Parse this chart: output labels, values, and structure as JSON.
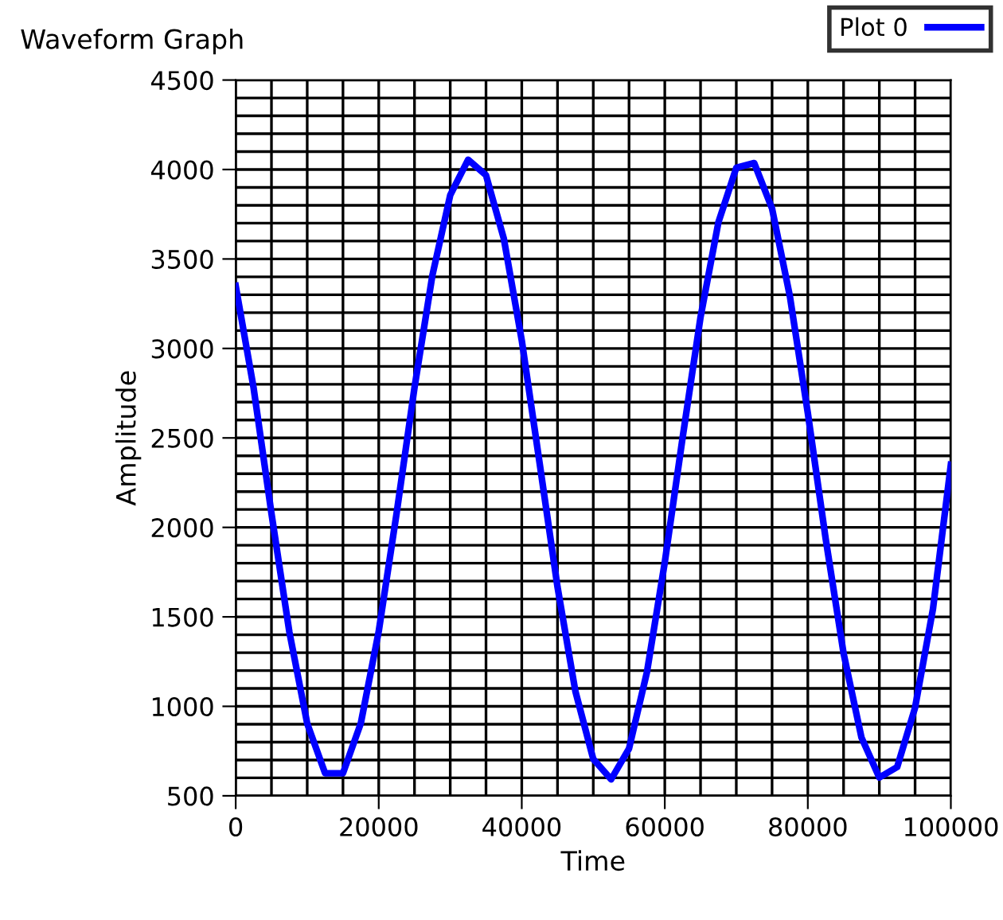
{
  "chart_data": {
    "type": "line",
    "title": "Waveform Graph",
    "xlabel": "Time",
    "ylabel": "Amplitude",
    "x": [
      0,
      2500,
      5000,
      7500,
      10000,
      12500,
      15000,
      17500,
      20000,
      22500,
      25000,
      27500,
      30000,
      32500,
      35000,
      37500,
      40000,
      42500,
      45000,
      47500,
      50000,
      52500,
      55000,
      57500,
      60000,
      62500,
      65000,
      67500,
      70000,
      72500,
      75000,
      77500,
      80000,
      82500,
      85000,
      87500,
      90000,
      92500,
      95000,
      97500,
      100000
    ],
    "series": [
      {
        "name": "Plot 0",
        "color": "#0000ff",
        "values": [
          3350,
          2780,
          2078,
          1416,
          904,
          626,
          626,
          906,
          1419,
          2079,
          2781,
          3408,
          3857,
          4055,
          3968,
          3612,
          3045,
          2358,
          1667,
          1084,
          705,
          592,
          764,
          1190,
          1805,
          2504,
          3175,
          3705,
          4010,
          4036,
          3782,
          3290,
          2639,
          1936,
          1296,
          826,
          602,
          661,
          993,
          1544,
          2350
        ]
      }
    ],
    "xlim": [
      0,
      100000
    ],
    "ylim": [
      500,
      4500
    ],
    "xticks": [
      0,
      20000,
      40000,
      60000,
      80000,
      100000
    ],
    "yticks": [
      500,
      1000,
      1500,
      2000,
      2500,
      3000,
      3500,
      4000,
      4500
    ],
    "grid": true,
    "legend": "top right",
    "marker": "none",
    "line_style": "solid"
  }
}
